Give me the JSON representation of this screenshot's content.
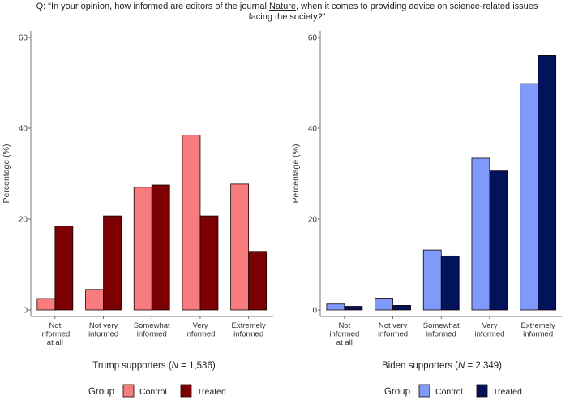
{
  "question": {
    "prefix": "Q: “In your opinion, how informed are editors of the journal ",
    "journal": "Nature",
    "suffix": ", when it comes to providing advice on science-related issues",
    "line2": "facing the society?”"
  },
  "chart_data": [
    {
      "type": "bar",
      "categories": [
        [
          "Not",
          "informed",
          "at all"
        ],
        [
          "Not very",
          "informed"
        ],
        [
          "Somewhat",
          "informed"
        ],
        [
          "Very",
          "informed"
        ],
        [
          "Extremely",
          "informed"
        ]
      ],
      "series": [
        {
          "name": "Control",
          "values": [
            2.5,
            4.5,
            27.0,
            38.5,
            27.7
          ]
        },
        {
          "name": "Treated",
          "values": [
            18.5,
            20.7,
            27.5,
            20.7,
            12.9
          ]
        }
      ],
      "title": "Trump supporters",
      "n_label": "N",
      "n_value": " = 1,536)",
      "ylabel": "Percentage (%)",
      "ylim": [
        0,
        60
      ],
      "yticks": [
        0,
        20,
        40,
        60
      ],
      "colors": {
        "Control": "#F87C7E",
        "Treated": "#7B0104"
      }
    },
    {
      "type": "bar",
      "categories": [
        [
          "Not",
          "informed",
          "at all"
        ],
        [
          "Not very",
          "informed"
        ],
        [
          "Somewhat",
          "informed"
        ],
        [
          "Very",
          "informed"
        ],
        [
          "Extremely",
          "informed"
        ]
      ],
      "series": [
        {
          "name": "Control",
          "values": [
            1.3,
            2.6,
            13.2,
            33.4,
            49.8
          ]
        },
        {
          "name": "Treated",
          "values": [
            0.8,
            1.0,
            11.9,
            30.6,
            56.0
          ]
        }
      ],
      "title": "Biden supporters",
      "n_label": "N",
      "n_value": " = 2,349)",
      "ylabel": "Percentage (%)",
      "ylim": [
        0,
        60
      ],
      "yticks": [
        0,
        20,
        40,
        60
      ],
      "colors": {
        "Control": "#7E9BFB",
        "Treated": "#04125A"
      }
    }
  ],
  "legend": {
    "title": "Group",
    "control": "Control",
    "treated": "Treated"
  }
}
